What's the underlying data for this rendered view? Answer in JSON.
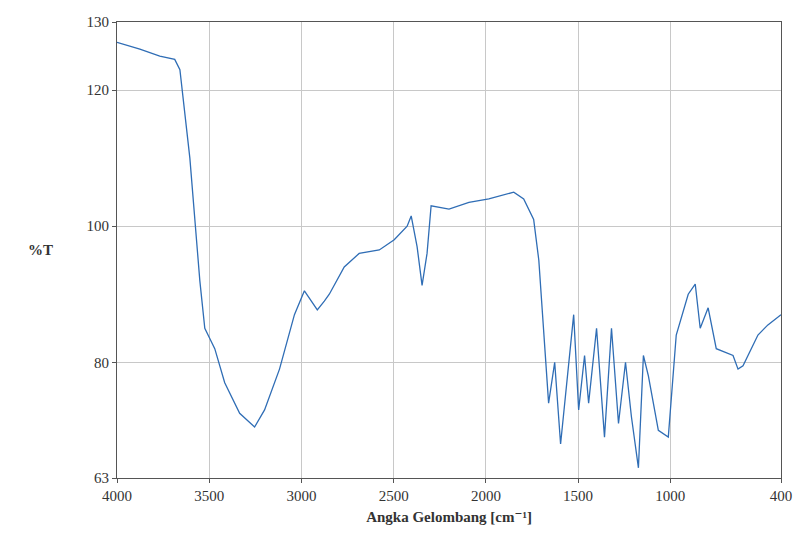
{
  "chart_data": {
    "type": "line",
    "x_label": "Angka Gelombang [cm⁻¹]",
    "y_label": "%T",
    "color": "#2f6db5",
    "grid": true,
    "xlim": [
      4000,
      400
    ],
    "xticks": [
      4000,
      3500,
      3000,
      2500,
      2000,
      1500,
      1000,
      400
    ],
    "ylim": [
      63,
      130
    ],
    "yticks": [
      63,
      80,
      100,
      120,
      130
    ],
    "x": [
      4000,
      3876,
      3768,
      3687,
      3659,
      3605,
      3551,
      3524,
      3497,
      3470,
      3416,
      3335,
      3254,
      3200,
      3119,
      3038,
      2984,
      2946,
      2914,
      2876,
      2849,
      2768,
      2687,
      2578,
      2497,
      2427,
      2405,
      2373,
      2346,
      2319,
      2297,
      2200,
      2092,
      1984,
      1849,
      1795,
      1741,
      1713,
      1687,
      1660,
      1627,
      1595,
      1524,
      1497,
      1465,
      1443,
      1400,
      1357,
      1319,
      1281,
      1243,
      1211,
      1173,
      1146,
      1119,
      1065,
      1011,
      968,
      903,
      865,
      838,
      795,
      751,
      660,
      633,
      606,
      525,
      471,
      400
    ],
    "values": [
      127,
      126,
      125,
      124.5,
      123,
      110,
      92,
      85,
      83.5,
      82,
      77,
      72.5,
      70.5,
      73,
      79,
      87,
      90.5,
      89,
      87.7,
      89,
      90,
      94,
      96,
      96.5,
      98,
      100,
      101.5,
      97,
      91.3,
      96,
      103,
      102.5,
      103.5,
      104,
      105,
      104,
      101,
      95,
      85,
      74,
      80,
      68,
      87,
      73,
      81,
      74,
      85,
      69,
      85,
      71,
      80,
      72,
      64.5,
      81,
      78,
      70,
      69,
      84,
      90,
      91.5,
      85,
      88,
      82,
      81,
      79,
      79.5,
      84,
      85.5,
      87
    ]
  }
}
